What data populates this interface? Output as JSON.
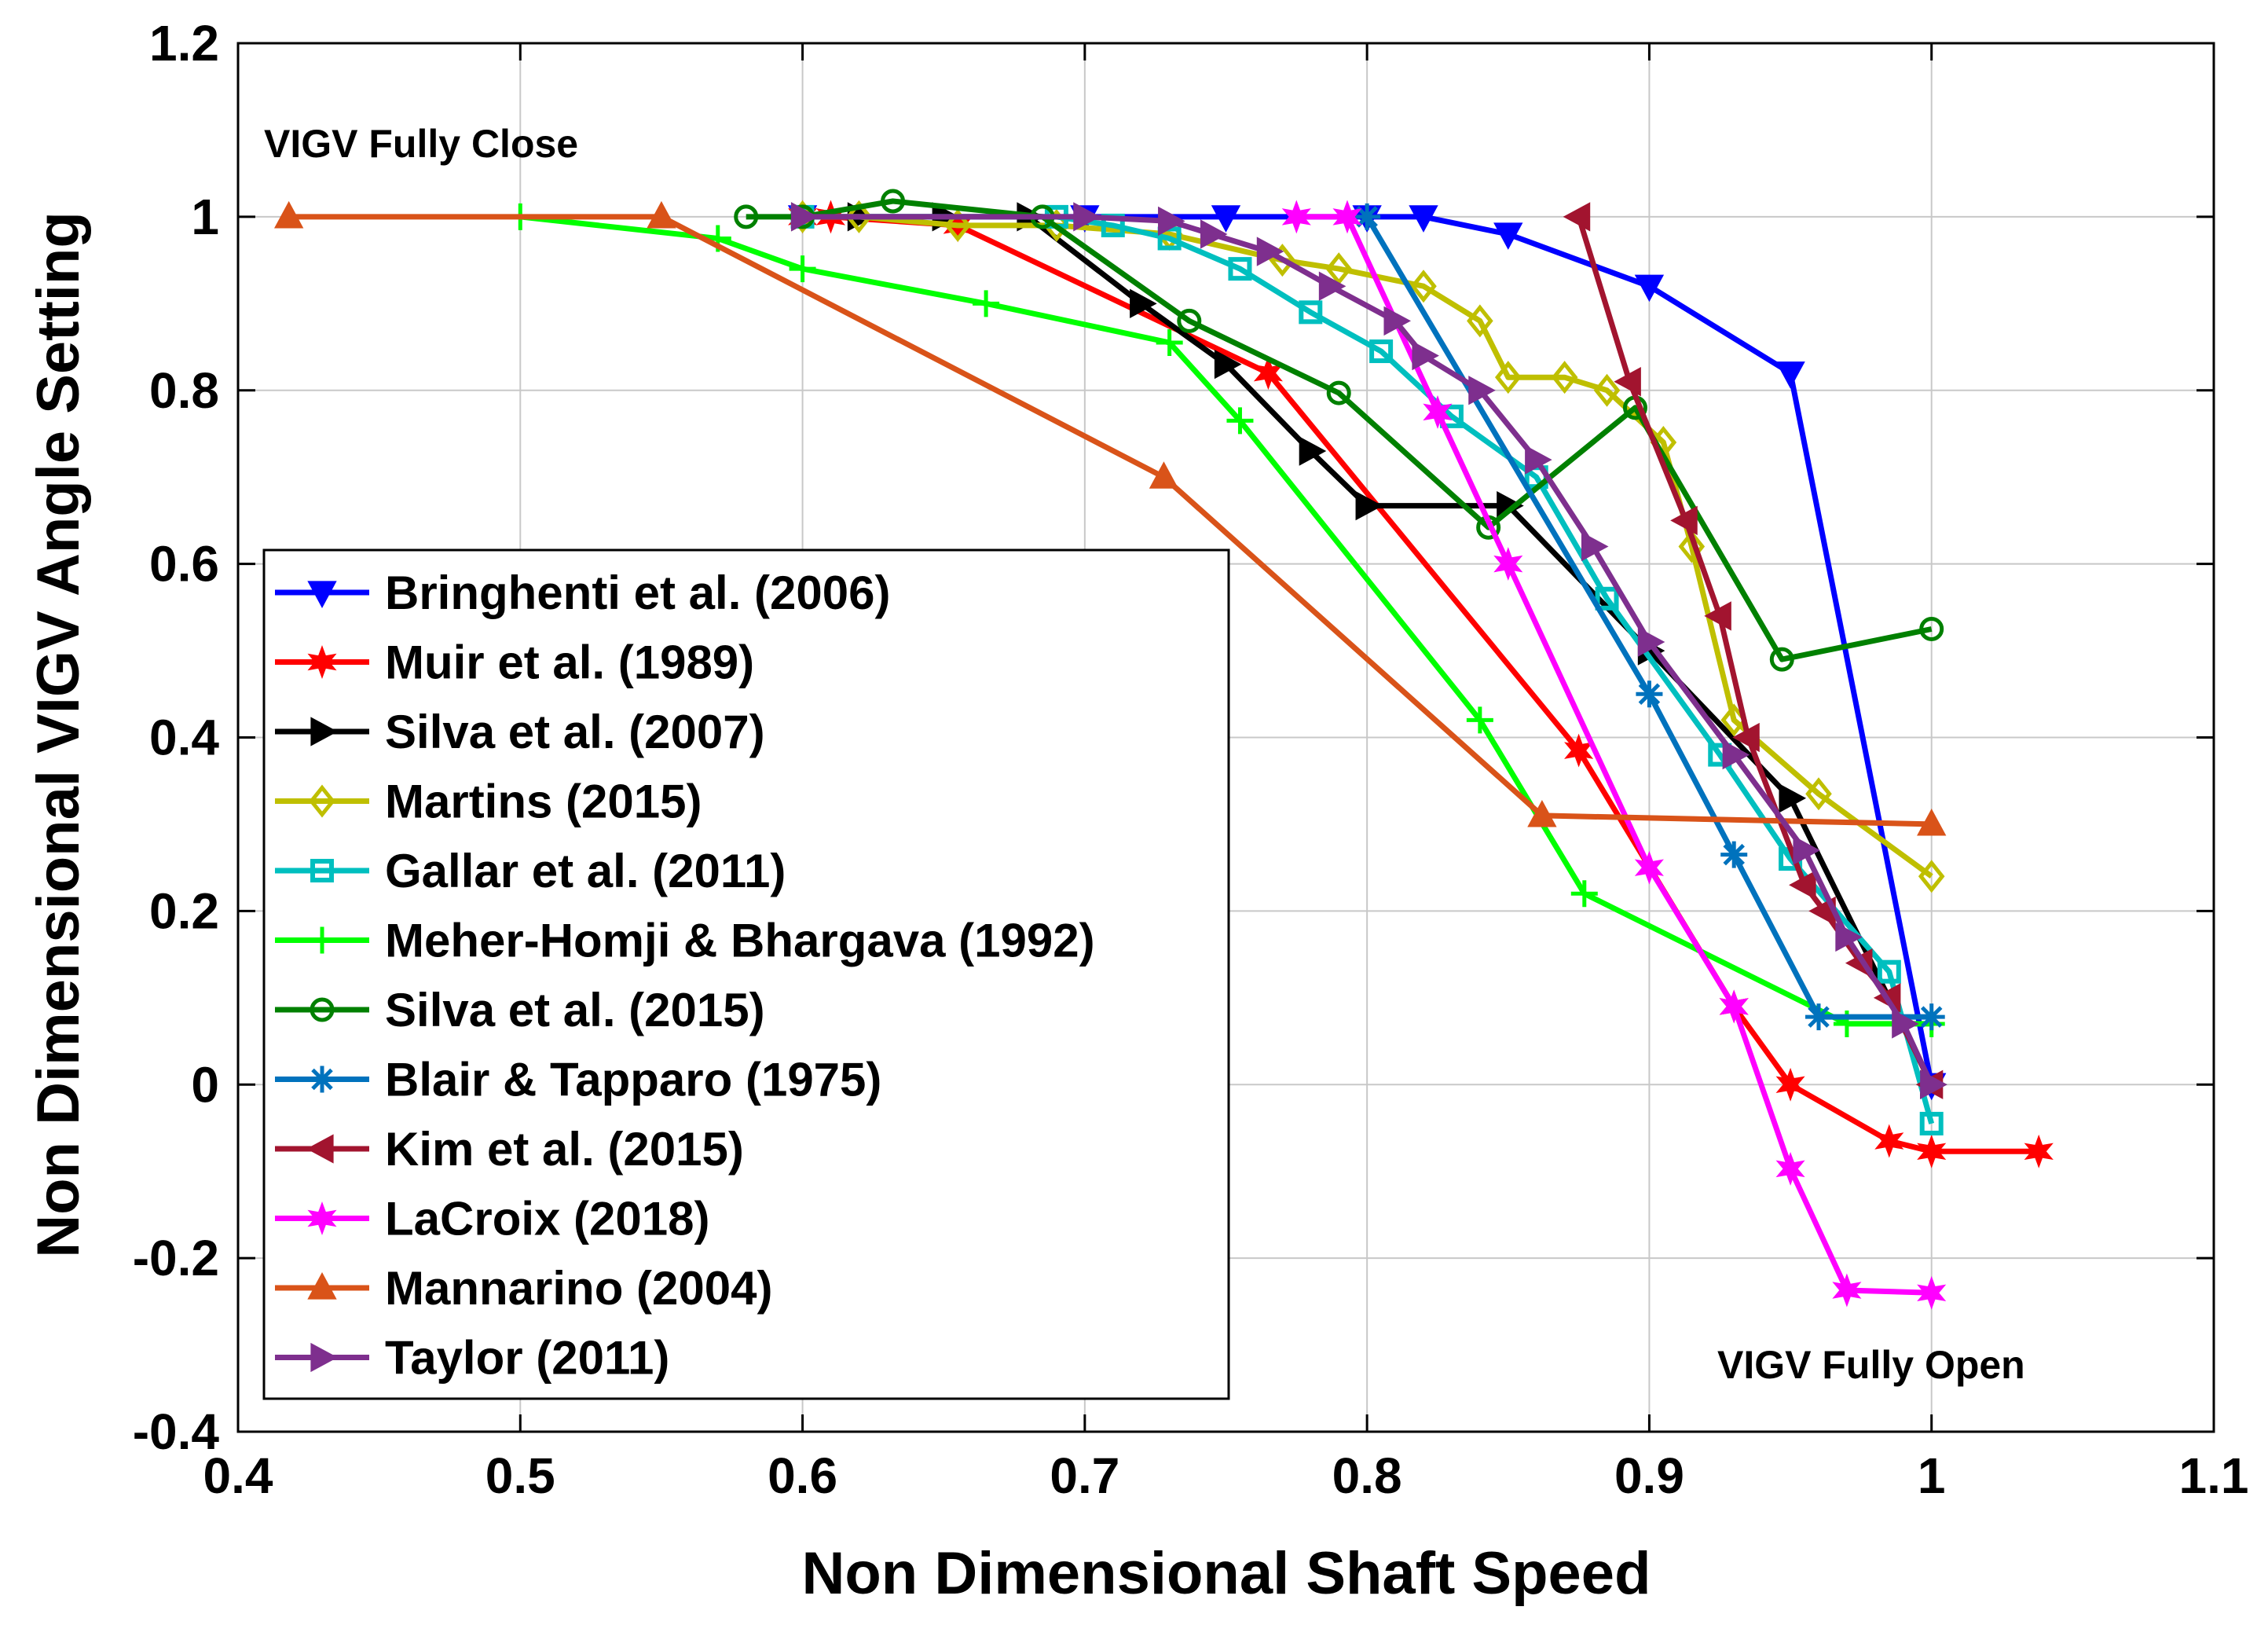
{
  "chart_data": {
    "type": "line",
    "title": "",
    "xlabel": "Non Dimensional Shaft Speed",
    "ylabel": "Non Dimensional VIGV Angle Setting",
    "xlim": [
      0.4,
      1.1
    ],
    "ylim": [
      -0.4,
      1.2
    ],
    "xticks": [
      0.4,
      0.5,
      0.6,
      0.7,
      0.8,
      0.9,
      1,
      1.1
    ],
    "yticks": [
      -0.4,
      -0.2,
      0,
      0.2,
      0.4,
      0.6,
      0.8,
      1,
      1.2
    ],
    "xtick_labels": [
      "0.4",
      "0.5",
      "0.6",
      "0.7",
      "0.8",
      "0.9",
      "1",
      "1.1"
    ],
    "ytick_labels": [
      "-0.4",
      "-0.2",
      "0",
      "0.2",
      "0.4",
      "0.6",
      "0.8",
      "1",
      "1.2"
    ],
    "grid": true,
    "legend_position": "lower-left",
    "annotations": [
      {
        "text": "VIGV Fully Close",
        "x": 0.41,
        "y": 1.07
      },
      {
        "text": "VIGV Fully Open",
        "x": 0.924,
        "y": -0.33
      }
    ],
    "series": [
      {
        "name": "Bringhenti et al. (2006)",
        "color": "#0000ff",
        "marker": "triangle-down",
        "x": [
          0.6,
          0.7,
          0.75,
          0.8,
          0.82,
          0.85,
          0.9,
          0.95,
          1.0
        ],
        "y": [
          1.0,
          1.0,
          1.0,
          1.0,
          1.0,
          0.98,
          0.92,
          0.82,
          0.0
        ]
      },
      {
        "name": "Muir et al. (1989)",
        "color": "#ff0000",
        "marker": "hexagram",
        "x": [
          0.6,
          0.61,
          0.655,
          0.765,
          0.875,
          0.93,
          0.95,
          0.985,
          1.0,
          1.038
        ],
        "y": [
          1.0,
          1.0,
          0.99,
          0.82,
          0.385,
          0.09,
          0.0,
          -0.065,
          -0.077,
          -0.077
        ]
      },
      {
        "name": "Silva et al. (2007)",
        "color": "#000000",
        "marker": "triangle-right",
        "x": [
          0.6,
          0.62,
          0.65,
          0.68,
          0.72,
          0.75,
          0.78,
          0.8,
          0.85,
          0.9,
          0.95,
          1.0
        ],
        "y": [
          1.0,
          1.0,
          1.0,
          1.0,
          0.9,
          0.83,
          0.73,
          0.667,
          0.667,
          0.5,
          0.33,
          0.0
        ]
      },
      {
        "name": "Martins (2015)",
        "color": "#bfbf00",
        "marker": "diamond",
        "x": [
          0.6,
          0.62,
          0.655,
          0.69,
          0.73,
          0.77,
          0.79,
          0.82,
          0.84,
          0.85,
          0.87,
          0.885,
          0.905,
          0.915,
          0.93,
          0.96,
          1.0
        ],
        "y": [
          1.0,
          1.0,
          0.99,
          0.99,
          0.98,
          0.95,
          0.94,
          0.92,
          0.88,
          0.815,
          0.815,
          0.8,
          0.74,
          0.62,
          0.42,
          0.335,
          0.24
        ]
      },
      {
        "name": "Gallar et al. (2011)",
        "color": "#00bfbf",
        "marker": "square",
        "x": [
          0.6,
          0.69,
          0.71,
          0.73,
          0.755,
          0.78,
          0.805,
          0.83,
          0.86,
          0.885,
          0.925,
          0.95,
          0.985,
          1.0
        ],
        "y": [
          1.0,
          1.0,
          0.99,
          0.975,
          0.94,
          0.89,
          0.845,
          0.77,
          0.7,
          0.56,
          0.38,
          0.26,
          0.13,
          -0.045
        ]
      },
      {
        "name": "Meher-Homji & Bhargava (1992)",
        "color": "#00ff00",
        "marker": "plus",
        "x": [
          0.5,
          0.57,
          0.6,
          0.665,
          0.73,
          0.755,
          0.84,
          0.877,
          0.97,
          1.0
        ],
        "y": [
          1.0,
          0.975,
          0.94,
          0.9,
          0.855,
          0.765,
          0.42,
          0.22,
          0.07,
          0.07
        ]
      },
      {
        "name": "Silva et al. (2015)",
        "color": "#008000",
        "marker": "circle",
        "x": [
          0.58,
          0.6,
          0.632,
          0.685,
          0.737,
          0.79,
          0.843,
          0.895,
          0.947,
          1.0
        ],
        "y": [
          1.0,
          1.0,
          1.018,
          1.0,
          0.88,
          0.797,
          0.642,
          0.78,
          0.49,
          0.525
        ]
      },
      {
        "name": "Blair & Tapparo (1975)",
        "color": "#0072bd",
        "marker": "asterisk",
        "x": [
          0.8,
          0.9,
          0.93,
          0.96,
          1.0
        ],
        "y": [
          1.0,
          0.45,
          0.265,
          0.078,
          0.078
        ]
      },
      {
        "name": "Kim et al. (2015)",
        "color": "#a2142f",
        "marker": "triangle-left",
        "x": [
          0.875,
          0.893,
          0.913,
          0.925,
          0.935,
          0.955,
          0.962,
          0.975,
          0.985,
          1.0
        ],
        "y": [
          1.0,
          0.81,
          0.65,
          0.54,
          0.4,
          0.23,
          0.2,
          0.14,
          0.1,
          0.0
        ]
      },
      {
        "name": "LaCroix (2018)",
        "color": "#ff00ff",
        "marker": "hexagram",
        "x": [
          0.775,
          0.793,
          0.825,
          0.85,
          0.9,
          0.93,
          0.95,
          0.97,
          1.0
        ],
        "y": [
          1.0,
          1.0,
          0.775,
          0.6,
          0.25,
          0.09,
          -0.097,
          -0.237,
          -0.24
        ]
      },
      {
        "name": "Mannarino (2004)",
        "color": "#d95319",
        "marker": "triangle-up",
        "x": [
          0.418,
          0.55,
          0.728,
          0.862,
          1.0
        ],
        "y": [
          1.0,
          1.0,
          0.7,
          0.31,
          0.3
        ]
      },
      {
        "name": "Taylor (2011)",
        "color": "#7e2f8e",
        "marker": "triangle-right",
        "x": [
          0.6,
          0.7,
          0.73,
          0.745,
          0.765,
          0.787,
          0.81,
          0.82,
          0.84,
          0.86,
          0.88,
          0.9,
          0.93,
          0.955,
          0.97,
          0.99,
          1.0
        ],
        "y": [
          1.0,
          1.0,
          0.995,
          0.98,
          0.96,
          0.92,
          0.88,
          0.84,
          0.8,
          0.72,
          0.62,
          0.51,
          0.38,
          0.27,
          0.17,
          0.07,
          0.0
        ]
      }
    ]
  }
}
